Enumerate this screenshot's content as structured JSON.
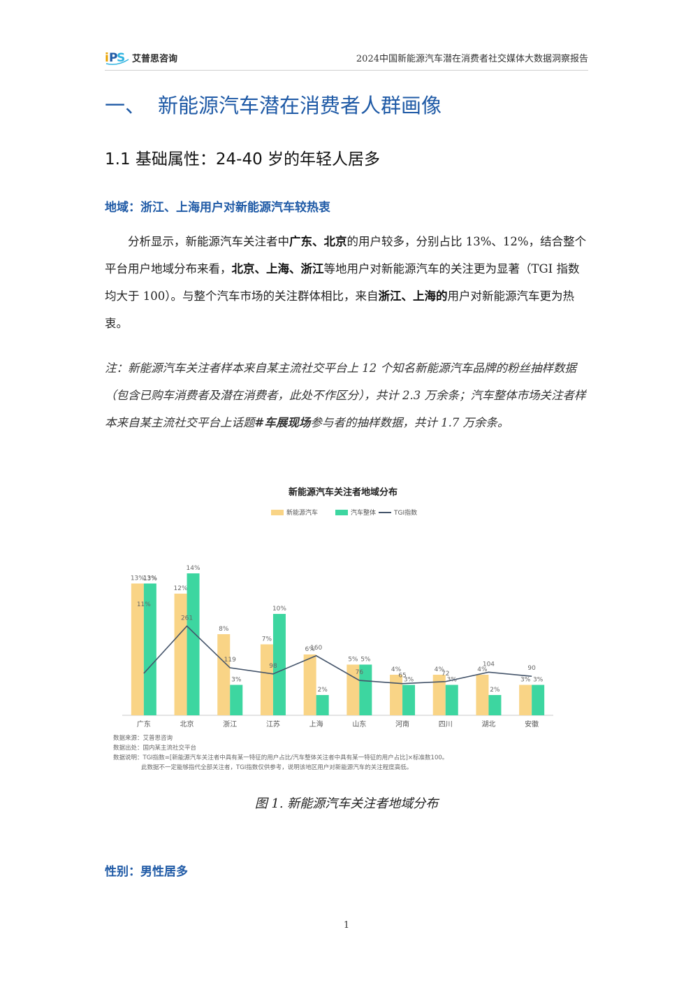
{
  "header": {
    "logo_text": "艾普思咨询",
    "doc_title": "2024中国新能源汽车潜在消费者社交媒体大数据洞察报告"
  },
  "section1": {
    "number": "一、",
    "title": "新能源汽车潜在消费者人群画像"
  },
  "section1_1": {
    "title": "1.1 基础属性：24-40 岁的年轻人居多"
  },
  "region": {
    "heading": "地域：浙江、上海用户对新能源汽车较热衷",
    "p1": "分析显示，新能源汽车关注者中",
    "p1_b1": "广东、北京",
    "p2": "的用户较多，分别占比 13%、12%，结合整个平台用户地域分布来看，",
    "p2_b1": "北京、上海、浙江",
    "p3": "等地用户对新能源汽车的关注更为显著（TGI 指数均大于 100）。与整个汽车市场的关注群体相比，来自",
    "p3_b1": "浙江、上海的",
    "p4": "用户对新能源汽车更为热衷。",
    "note_1": "注：新能源汽车关注者样本来自某主流社交平台上 12 个知名新能源汽车品牌的粉丝抽样数据（包含已购车消费者及潜在消费者，此处不作区分），共计 2.3 万余条；汽车整体市场关注者样本来自某主流社交平台上话题",
    "note_b": "#车展现场",
    "note_2": "参与者的抽样数据，共计 1.7 万余条。"
  },
  "chart_data": {
    "type": "bar",
    "title": "新能源汽车关注者地域分布",
    "categories": [
      "广东",
      "北京",
      "浙江",
      "江苏",
      "上海",
      "山东",
      "河南",
      "四川",
      "湖北",
      "安徽"
    ],
    "series": [
      {
        "name": "新能源汽车",
        "type": "bar",
        "color": "#f9d486",
        "values": [
          13,
          12,
          8,
          7,
          6,
          5,
          4,
          4,
          4,
          3
        ],
        "labels": [
          "13%",
          "12%",
          "8%",
          "7%",
          "6%",
          "5%",
          "4%",
          "4%",
          "4%",
          "3%"
        ]
      },
      {
        "name": "汽车整体",
        "type": "bar",
        "color": "#3dd6a0",
        "values": [
          13,
          14,
          3,
          10,
          2,
          5,
          3,
          3,
          2,
          3
        ],
        "labels": [
          "13%",
          "14%",
          "3%",
          "10%",
          "2%",
          "5%",
          "3%",
          "3%",
          "2%",
          "3%"
        ]
      },
      {
        "name": "TGI指数",
        "type": "line",
        "color": "#44546a",
        "values": [
          100,
          261,
          119,
          98,
          160,
          76,
          65,
          72,
          104,
          90
        ],
        "labels": [
          "",
          "261",
          "119",
          "98",
          "160",
          "76",
          "65",
          "72",
          "104",
          "90"
        ]
      }
    ],
    "extra_labels": [
      "13%",
      "11%"
    ],
    "source": "数据来源：艾普思咨询",
    "data_origin": "数据出处：国内某主流社交平台",
    "data_desc_1": "数据说明：TGI指数=[新能源汽车关注者中具有某一特征的用户占比/汽车整体关注者中具有某一特征的用户占比]×标准数100。",
    "data_desc_2": "此数据不一定能够指代全部关注者，TGI指数仅供参考，说明该地区用户对新能源汽车的关注程度高低。"
  },
  "caption": "图 1. 新能源汽车关注者地域分布",
  "gender": {
    "heading": "性别：男性居多"
  },
  "page_number": "1"
}
